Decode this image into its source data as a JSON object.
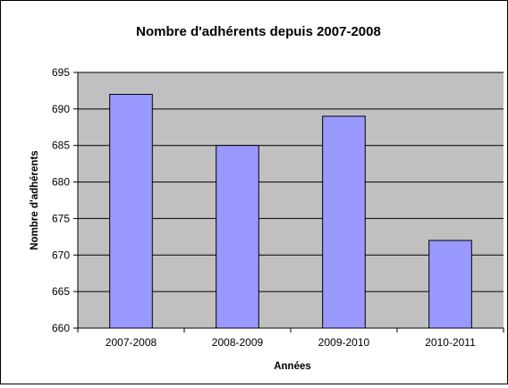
{
  "chart_data": {
    "type": "bar",
    "title": "Nombre d'adhérents depuis 2007-2008",
    "xlabel": "Années",
    "ylabel": "Nombre d'adhérents",
    "categories": [
      "2007-2008",
      "2008-2009",
      "2009-2010",
      "2010-2011"
    ],
    "values": [
      692,
      685,
      689,
      672
    ],
    "ylim": [
      660,
      695
    ],
    "yticks": [
      660,
      665,
      670,
      675,
      680,
      685,
      690,
      695
    ],
    "grid": true,
    "legend": "none",
    "colors": {
      "bar_fill": "#9999FF",
      "bar_stroke": "#000000",
      "plot_background": "#C0C0C0",
      "gridline": "#000000"
    }
  }
}
